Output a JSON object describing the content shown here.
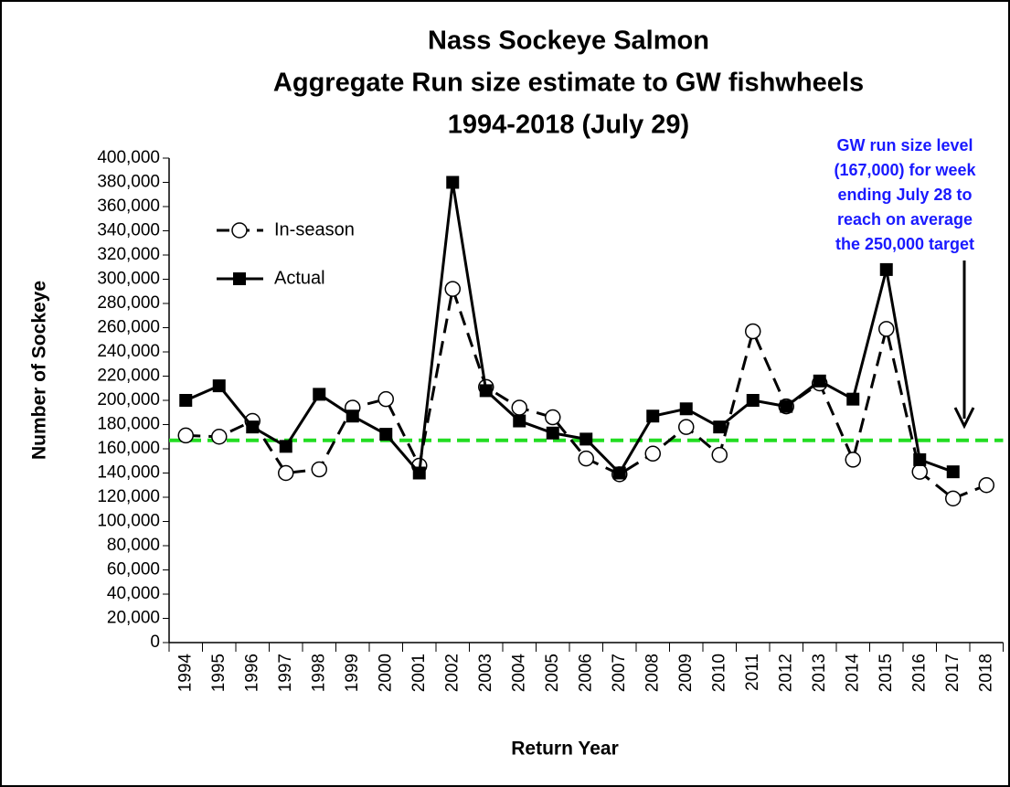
{
  "chart_data": {
    "type": "line",
    "title": [
      "Nass Sockeye Salmon",
      "Aggregate Run size estimate to GW fishwheels",
      "1994-2018 (July 29)"
    ],
    "x_label": "Return Year",
    "y_label": "Number of Sockeye",
    "categories": [
      "1994",
      "1995",
      "1996",
      "1997",
      "1998",
      "1999",
      "2000",
      "2001",
      "2002",
      "2003",
      "2004",
      "2005",
      "2006",
      "2007",
      "2008",
      "2009",
      "2010",
      "2011",
      "2012",
      "2013",
      "2014",
      "2015",
      "2016",
      "2017",
      "2018"
    ],
    "series": [
      {
        "name": "In-season",
        "color": "#000000",
        "style": "dashed",
        "marker": "circle",
        "values": [
          171000,
          170000,
          183000,
          140000,
          143000,
          194000,
          201000,
          146000,
          292000,
          211000,
          194000,
          186000,
          152000,
          139000,
          156000,
          178000,
          155000,
          257000,
          195000,
          214000,
          151000,
          259000,
          141000,
          119000,
          130000
        ]
      },
      {
        "name": "Actual",
        "color": "#000000",
        "style": "solid",
        "marker": "square",
        "values": [
          200000,
          212000,
          178000,
          162000,
          205000,
          187000,
          172000,
          140000,
          380000,
          208000,
          183000,
          173000,
          168000,
          140000,
          187000,
          193000,
          178000,
          200000,
          195000,
          216000,
          201000,
          308000,
          151000,
          141000,
          null
        ]
      }
    ],
    "reference_line": {
      "value": 167000,
      "color": "#22dd22"
    },
    "annotation": [
      "GW run size level",
      "(167,000) for week",
      "ending July 28 to",
      "reach on average",
      "the 250,000 target"
    ],
    "ylim": [
      0,
      400000
    ],
    "yticks": [
      {
        "value": 0,
        "label": "0"
      },
      {
        "value": 20000,
        "label": "20,000"
      },
      {
        "value": 40000,
        "label": "40,000"
      },
      {
        "value": 60000,
        "label": "60,000"
      },
      {
        "value": 80000,
        "label": "80,000"
      },
      {
        "value": 100000,
        "label": "100,000"
      },
      {
        "value": 120000,
        "label": "120,000"
      },
      {
        "value": 140000,
        "label": "140,000"
      },
      {
        "value": 160000,
        "label": "160,000"
      },
      {
        "value": 180000,
        "label": "180,000"
      },
      {
        "value": 200000,
        "label": "200,000"
      },
      {
        "value": 220000,
        "label": "220,000"
      },
      {
        "value": 240000,
        "label": "240,000"
      },
      {
        "value": 260000,
        "label": "260,000"
      },
      {
        "value": 280000,
        "label": "280,000"
      },
      {
        "value": 300000,
        "label": "300,000"
      },
      {
        "value": 320000,
        "label": "320,000"
      },
      {
        "value": 340000,
        "label": "340,000"
      },
      {
        "value": 360000,
        "label": "360,000"
      },
      {
        "value": 380000,
        "label": "380,000"
      },
      {
        "value": 400000,
        "label": "400,000"
      }
    ],
    "legend": "upper left",
    "grid": false
  }
}
